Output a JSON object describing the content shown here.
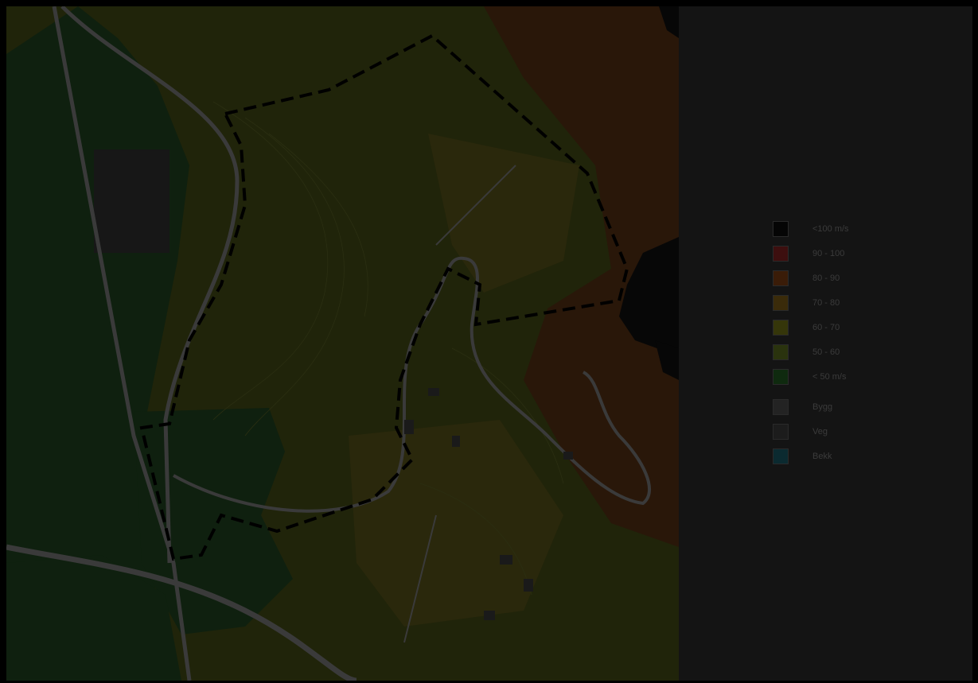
{
  "legend": {
    "items": [
      {
        "label": "<100 m/s",
        "color": "#050505",
        "icon": "square-swatch"
      },
      {
        "label": "90 - 100",
        "color": "#3d0f0f",
        "icon": "square-swatch"
      },
      {
        "label": "80 - 90",
        "color": "#3a1c08",
        "icon": "square-swatch"
      },
      {
        "label": "70 - 80",
        "color": "#3a2b0a",
        "icon": "square-swatch"
      },
      {
        "label": "60 - 70",
        "color": "#35360a",
        "icon": "square-swatch"
      },
      {
        "label": "50 - 60",
        "color": "#2a330e",
        "icon": "square-swatch"
      },
      {
        "label": "< 50 m/s",
        "color": "#0f2a0f",
        "icon": "square-swatch"
      },
      {
        "label": "Bygg",
        "color": "#232323",
        "icon": "square-swatch"
      },
      {
        "label": "Veg",
        "color": "#1c1c1c",
        "icon": "square-swatch"
      },
      {
        "label": "Bekk",
        "color": "#0b2a30",
        "icon": "square-swatch"
      }
    ]
  },
  "map": {
    "colors": {
      "terrain": "#20240a",
      "forest": "#0f200f",
      "field": "#2a280c",
      "red_zone": "#2c1409",
      "road": "#3a3a3a",
      "boundary": "#000000"
    }
  }
}
